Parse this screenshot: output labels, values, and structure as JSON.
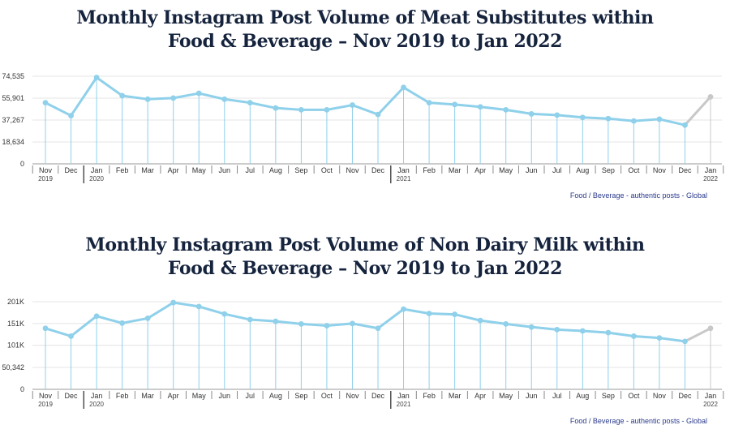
{
  "chart_data": [
    {
      "type": "line",
      "title_line1": "Monthly Instagram Post Volume of Meat Substitutes within",
      "title_line2": "Food & Beverage – Nov 2019 to Jan 2022",
      "footnote": "Food / Beverage - authentic posts - Global",
      "ylim": [
        0,
        74535
      ],
      "yticks": [
        0,
        18634,
        37267,
        55901,
        74535
      ],
      "ytick_labels": [
        "0",
        "18,634",
        "37,267",
        "55,901",
        "74,535"
      ],
      "x": [
        "Nov",
        "Dec",
        "Jan",
        "Feb",
        "Mar",
        "Apr",
        "May",
        "Jun",
        "Jul",
        "Aug",
        "Sep",
        "Oct",
        "Nov",
        "Dec",
        "Jan",
        "Feb",
        "Mar",
        "Apr",
        "May",
        "Jun",
        "Jul",
        "Aug",
        "Sep",
        "Oct",
        "Nov",
        "Dec",
        "Jan"
      ],
      "year_labels": [
        {
          "index": 0,
          "label": "2019"
        },
        {
          "index": 2,
          "label": "2020"
        },
        {
          "index": 14,
          "label": "2021"
        },
        {
          "index": 26,
          "label": "2022"
        }
      ],
      "values": [
        52000,
        41000,
        73500,
        58000,
        55000,
        56000,
        60000,
        55000,
        52000,
        47500,
        46000,
        46000,
        50000,
        42000,
        65000,
        52000,
        50500,
        48500,
        46000,
        42500,
        41500,
        39500,
        38500,
        36500,
        38000,
        33000,
        57000
      ],
      "projected_from_index": 25,
      "series_color": "#8fd0ea",
      "projected_color": "#c8c8c8"
    },
    {
      "type": "line",
      "title_line1": "Monthly Instagram Post Volume of Non Dairy Milk within",
      "title_line2": "Food & Beverage – Nov 2019 to Jan 2022",
      "footnote": "Food / Beverage - authentic posts - Global",
      "ylim": [
        0,
        201000
      ],
      "yticks": [
        0,
        50342,
        101000,
        151000,
        201000
      ],
      "ytick_labels": [
        "0",
        "50,342",
        "101K",
        "151K",
        "201K"
      ],
      "x": [
        "Nov",
        "Dec",
        "Jan",
        "Feb",
        "Mar",
        "Apr",
        "May",
        "Jun",
        "Jul",
        "Aug",
        "Sep",
        "Oct",
        "Nov",
        "Dec",
        "Jan",
        "Feb",
        "Mar",
        "Apr",
        "May",
        "Jun",
        "Jul",
        "Aug",
        "Sep",
        "Oct",
        "Nov",
        "Dec",
        "Jan"
      ],
      "year_labels": [
        {
          "index": 0,
          "label": "2019"
        },
        {
          "index": 2,
          "label": "2020"
        },
        {
          "index": 14,
          "label": "2021"
        },
        {
          "index": 26,
          "label": "2022"
        }
      ],
      "values": [
        140000,
        122000,
        168000,
        152000,
        163000,
        199000,
        190000,
        173000,
        160000,
        156000,
        150000,
        146000,
        151000,
        140000,
        184000,
        174000,
        172000,
        158000,
        150000,
        143000,
        137000,
        134000,
        130000,
        122000,
        118000,
        110000,
        140000
      ],
      "projected_from_index": 25,
      "series_color": "#8fd0ea",
      "projected_color": "#c8c8c8"
    }
  ]
}
